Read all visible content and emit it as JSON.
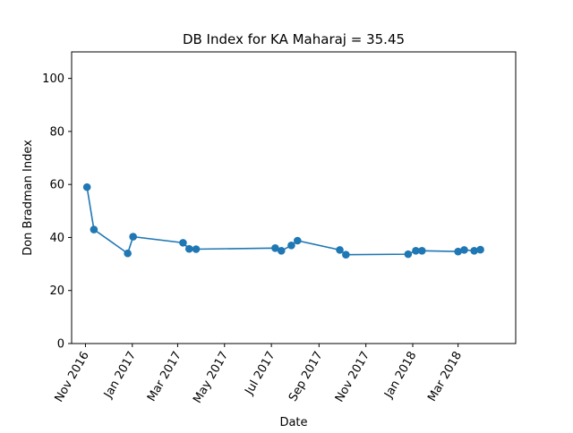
{
  "chart_data": {
    "type": "line",
    "title": "DB Index for KA Maharaj = 35.45",
    "xlabel": "Date",
    "ylabel": "Don Bradman Index",
    "ylim": [
      0,
      110
    ],
    "xlim": [
      "2016-10-14",
      "2018-05-15"
    ],
    "grid": false,
    "series_color": "#1f77b4",
    "y_ticks": [
      {
        "value": 0,
        "label": "0"
      },
      {
        "value": 20,
        "label": "20"
      },
      {
        "value": 40,
        "label": "40"
      },
      {
        "value": 60,
        "label": "60"
      },
      {
        "value": 80,
        "label": "80"
      },
      {
        "value": 100,
        "label": "100"
      }
    ],
    "x_ticks": [
      {
        "date": "2016-11-01",
        "label": "Nov 2016"
      },
      {
        "date": "2017-01-01",
        "label": "Jan 2017"
      },
      {
        "date": "2017-03-01",
        "label": "Mar 2017"
      },
      {
        "date": "2017-05-01",
        "label": "May 2017"
      },
      {
        "date": "2017-07-01",
        "label": "Jul 2017"
      },
      {
        "date": "2017-09-01",
        "label": "Sep 2017"
      },
      {
        "date": "2017-11-01",
        "label": "Nov 2017"
      },
      {
        "date": "2018-01-01",
        "label": "Jan 2018"
      },
      {
        "date": "2018-03-01",
        "label": "Mar 2018"
      }
    ],
    "points": [
      {
        "x": "2016-11-03",
        "y": 59.0
      },
      {
        "x": "2016-11-12",
        "y": 43.0
      },
      {
        "x": "2016-12-26",
        "y": 34.0
      },
      {
        "x": "2017-01-02",
        "y": 40.3
      },
      {
        "x": "2017-03-08",
        "y": 38.0
      },
      {
        "x": "2017-03-16",
        "y": 35.7
      },
      {
        "x": "2017-03-25",
        "y": 35.6
      },
      {
        "x": "2017-07-06",
        "y": 36.0
      },
      {
        "x": "2017-07-14",
        "y": 35.0
      },
      {
        "x": "2017-07-27",
        "y": 37.0
      },
      {
        "x": "2017-08-04",
        "y": 38.8
      },
      {
        "x": "2017-09-28",
        "y": 35.3
      },
      {
        "x": "2017-10-06",
        "y": 33.5
      },
      {
        "x": "2017-12-26",
        "y": 33.7
      },
      {
        "x": "2018-01-05",
        "y": 35.0
      },
      {
        "x": "2018-01-13",
        "y": 35.0
      },
      {
        "x": "2018-03-01",
        "y": 34.7
      },
      {
        "x": "2018-03-09",
        "y": 35.3
      },
      {
        "x": "2018-03-22",
        "y": 35.0
      },
      {
        "x": "2018-03-30",
        "y": 35.4
      }
    ]
  }
}
